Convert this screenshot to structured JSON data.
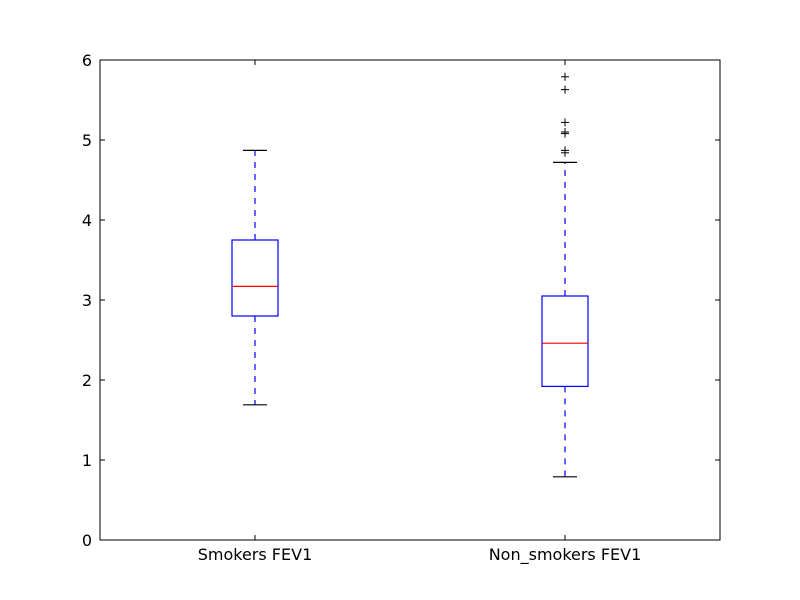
{
  "chart_data": {
    "type": "box",
    "title": "",
    "xlabel": "",
    "ylabel": "",
    "ylim": [
      0,
      6
    ],
    "yticks": [
      0,
      1,
      2,
      3,
      4,
      5,
      6
    ],
    "ytick_labels": [
      "0",
      "1",
      "2",
      "3",
      "4",
      "5",
      "6"
    ],
    "categories": [
      "Smokers FEV1",
      "Non_smokers FEV1"
    ],
    "boxes": [
      {
        "name": "Smokers FEV1",
        "whisker_low": 1.69,
        "q1": 2.8,
        "median": 3.17,
        "q3": 3.75,
        "whisker_high": 4.87,
        "outliers": []
      },
      {
        "name": "Non_smokers FEV1",
        "whisker_low": 0.79,
        "q1": 1.92,
        "median": 2.46,
        "q3": 3.05,
        "whisker_high": 4.72,
        "outliers": [
          4.84,
          4.87,
          5.08,
          5.1,
          5.22,
          5.63,
          5.79
        ]
      }
    ],
    "colors": {
      "box": "#0000ff",
      "median": "#ff0000",
      "whisker": "#0000ff",
      "cap": "#000000",
      "outlier": "#000000",
      "axes": "#000000"
    }
  }
}
